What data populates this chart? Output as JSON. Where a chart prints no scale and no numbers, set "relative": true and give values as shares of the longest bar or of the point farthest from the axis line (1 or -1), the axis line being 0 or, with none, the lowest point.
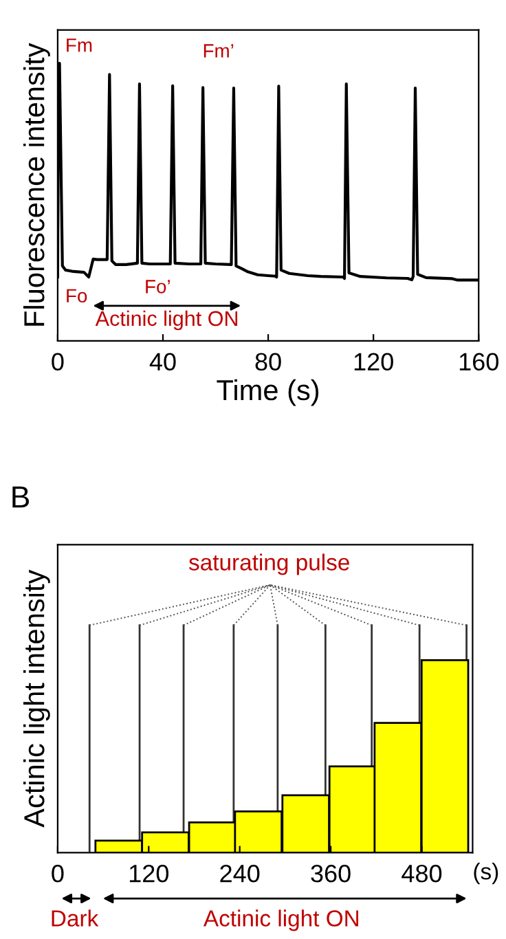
{
  "chart_data": [
    {
      "type": "line",
      "xlabel": "Time (s)",
      "ylabel": "Fluorescence intensity",
      "relative": true,
      "xlim": [
        0,
        160
      ],
      "xticks": [
        0,
        40,
        80,
        120,
        160
      ],
      "grid": false,
      "legend": false,
      "marker": "none",
      "line_style": "solid",
      "series": [
        {
          "color": "#000000",
          "x": [
            0,
            0.3,
            0.7,
            1.3,
            1.8,
            3,
            6,
            10,
            11.8,
            13.5,
            15,
            18.8,
            19.7,
            20.6,
            22,
            26,
            30.3,
            31.1,
            32,
            35,
            42.8,
            43.7,
            44.6,
            50,
            54.4,
            55.2,
            56.1,
            60,
            66,
            66.9,
            67.8,
            70,
            72,
            76,
            80,
            82.8,
            83.2,
            84.0,
            84.9,
            88,
            95,
            100,
            108.6,
            109.0,
            109.7,
            110.7,
            115,
            125,
            133,
            134.6,
            135.1,
            135.9,
            136.8,
            140,
            150,
            152,
            160
          ],
          "values": [
            0.23,
            0.92,
            1.0,
            0.6,
            0.27,
            0.255,
            0.25,
            0.247,
            0.23,
            0.295,
            0.293,
            0.293,
            0.96,
            0.288,
            0.275,
            0.275,
            0.28,
            0.926,
            0.28,
            0.277,
            0.277,
            0.919,
            0.28,
            0.277,
            0.277,
            0.913,
            0.28,
            0.277,
            0.275,
            0.911,
            0.27,
            0.26,
            0.25,
            0.238,
            0.235,
            0.233,
            0.23,
            0.918,
            0.255,
            0.243,
            0.235,
            0.232,
            0.23,
            0.225,
            0.926,
            0.245,
            0.232,
            0.227,
            0.225,
            0.22,
            0.232,
            0.911,
            0.24,
            0.228,
            0.224,
            0.219,
            0.219
          ]
        }
      ],
      "annotations": [
        {
          "text": "Fm",
          "x": 0.7,
          "y": 1.0
        },
        {
          "text": "Fm’",
          "x": 66.9,
          "y": 0.911
        },
        {
          "text": "Fo",
          "x": 0,
          "y": 0.23
        },
        {
          "text": "Fo’",
          "x": 38,
          "y": 0.277
        },
        "Actinic light ON"
      ]
    },
    {
      "type": "bar",
      "title": "B",
      "xlabel": "(s)",
      "ylabel": "Actinic light intensity",
      "relative": true,
      "xlim": [
        0,
        547
      ],
      "xticks": [
        0,
        120,
        240,
        360,
        480
      ],
      "grid": false,
      "legend": false,
      "color": "#ffff00",
      "x": [
        80.5,
        142,
        204,
        264.5,
        327,
        389,
        448.5,
        510.5
      ],
      "values": [
        0.062,
        0.105,
        0.157,
        0.214,
        0.298,
        0.448,
        0.674,
        1.0
      ],
      "ref_lines": [
        {
          "axis": "x",
          "value": 42
        },
        {
          "axis": "x",
          "value": 108
        },
        {
          "axis": "x",
          "value": 166
        },
        {
          "axis": "x",
          "value": 232
        },
        {
          "axis": "x",
          "value": 290
        },
        {
          "axis": "x",
          "value": 353
        },
        {
          "axis": "x",
          "value": 414
        },
        {
          "axis": "x",
          "value": 477
        },
        {
          "axis": "x",
          "value": 539
        }
      ],
      "annotations": [
        "saturating pulse",
        "Dark",
        "Actinic light ON"
      ]
    }
  ]
}
